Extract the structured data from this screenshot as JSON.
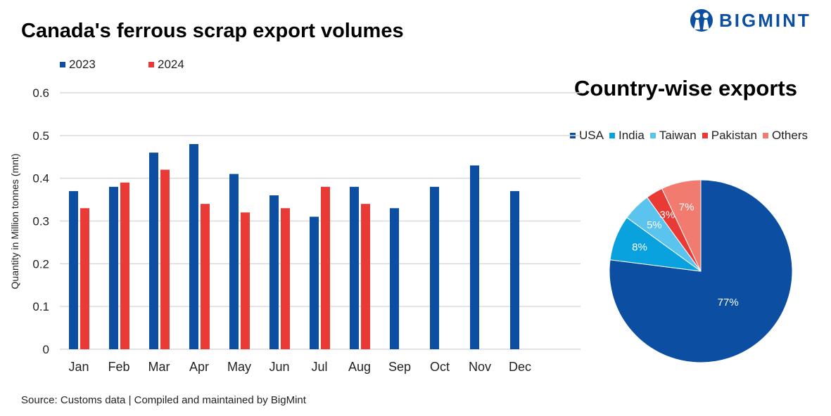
{
  "brand": {
    "logo_text": "BIGMINT"
  },
  "source": "Source: Customs data | Compiled and maintained by BigMint",
  "colors": {
    "2023": "#0b4ea2",
    "2024": "#e93a36",
    "USA": "#0b4ea2",
    "India": "#0aa1df",
    "Taiwan": "#5ac4ef",
    "Pakistan": "#e93a36",
    "Others": "#f27b70"
  },
  "chart_data": [
    {
      "type": "bar",
      "title": "Canada's ferrous scrap export volumes",
      "ylabel": "Quantity in Million tonnes (mnt)",
      "xlabel": "",
      "ylim": [
        0,
        0.6
      ],
      "yticks": [
        "0",
        "0.1",
        "0.2",
        "0.3",
        "0.4",
        "0.5",
        "0.6"
      ],
      "grid": true,
      "legend": "top-left",
      "categories": [
        "Jan",
        "Feb",
        "Mar",
        "Apr",
        "May",
        "Jun",
        "Jul",
        "Aug",
        "Sep",
        "Oct",
        "Nov",
        "Dec"
      ],
      "series": [
        {
          "name": "2023",
          "values": [
            0.37,
            0.38,
            0.46,
            0.48,
            0.41,
            0.36,
            0.31,
            0.38,
            0.33,
            0.38,
            0.43,
            0.37
          ]
        },
        {
          "name": "2024",
          "values": [
            0.33,
            0.39,
            0.42,
            0.34,
            0.32,
            0.33,
            0.38,
            0.34,
            null,
            null,
            null,
            null
          ]
        }
      ]
    },
    {
      "type": "pie",
      "title": "Country-wise exports",
      "legend": "top",
      "labels": [
        "USA",
        "India",
        "Taiwan",
        "Pakistan",
        "Others"
      ],
      "values": [
        77,
        8,
        5,
        3,
        7
      ],
      "data_labels": [
        "77%",
        "8%",
        "5%",
        "3%",
        "7%"
      ]
    }
  ]
}
